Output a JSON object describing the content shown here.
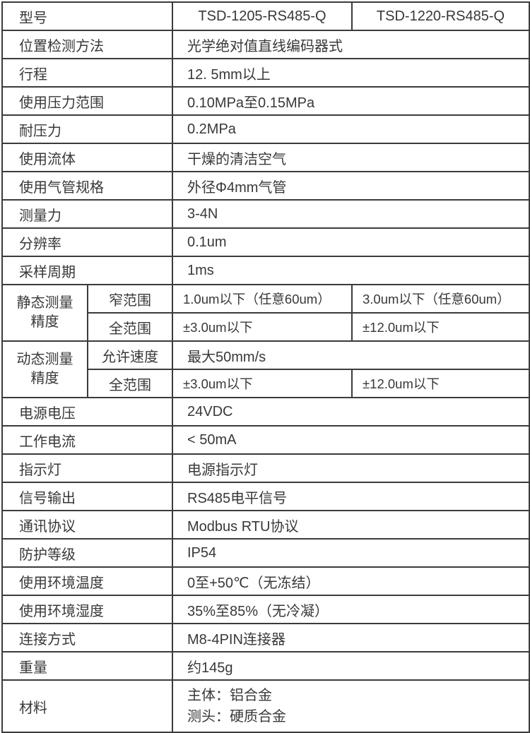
{
  "table": {
    "model": {
      "label": "型号",
      "v1": "TSD-1205-RS485-Q",
      "v2": "TSD-1220-RS485-Q"
    },
    "position_method": {
      "label": "位置检测方法",
      "value": "光学绝对值直线编码器式"
    },
    "stroke": {
      "label": "行程",
      "value": "12. 5mm以上"
    },
    "pressure_range": {
      "label": "使用压力范围",
      "value": "0.10MPa至0.15MPa"
    },
    "proof_pressure": {
      "label": "耐压力",
      "value": "0.2MPa"
    },
    "fluid": {
      "label": "使用流体",
      "value": "干燥的清洁空气"
    },
    "tubing_spec": {
      "label": "使用气管规格",
      "value": "外径Φ4mm气管"
    },
    "measuring_force": {
      "label": "测量力",
      "value": "3-4N"
    },
    "resolution": {
      "label": "分辨率",
      "value": "0.1um"
    },
    "sampling_period": {
      "label": "采样周期",
      "value": "1ms"
    },
    "static_accuracy": {
      "label": "静态测量\n精度",
      "narrow": {
        "label": "窄范围",
        "v1": "1.0um以下（任意60um）",
        "v2": "3.0um以下（任意60um）"
      },
      "full": {
        "label": "全范围",
        "v1": "±3.0um以下",
        "v2": "±12.0um以下"
      }
    },
    "dynamic_accuracy": {
      "label": "动态测量\n精度",
      "speed": {
        "label": "允许速度",
        "value": "最大50mm/s"
      },
      "full": {
        "label": "全范围",
        "v1": "±3.0um以下",
        "v2": "±12.0um以下"
      }
    },
    "supply_voltage": {
      "label": "电源电压",
      "value": "24VDC"
    },
    "working_current": {
      "label": "工作电流",
      "value": "< 50mA"
    },
    "indicator": {
      "label": "指示灯",
      "value": "电源指示灯"
    },
    "signal_output": {
      "label": "信号输出",
      "value": "RS485电平信号"
    },
    "protocol": {
      "label": "通讯协议",
      "value": "Modbus RTU协议"
    },
    "protection_rating": {
      "label": "防护等级",
      "value": "IP54"
    },
    "ambient_temp": {
      "label": "使用环境温度",
      "value": "0至+50℃（无冻结）"
    },
    "ambient_humidity": {
      "label": "使用环境湿度",
      "value": "35%至85%（无冷凝）"
    },
    "connection": {
      "label": "连接方式",
      "value": "M8-4PIN连接器"
    },
    "weight": {
      "label": "重量",
      "value": "约145g"
    },
    "material": {
      "label": "材料",
      "value": "主体：铝合金\n测头：硬质合金"
    }
  },
  "colors": {
    "border": "#3b3b3b",
    "text": "#383838",
    "background": "#ffffff"
  }
}
